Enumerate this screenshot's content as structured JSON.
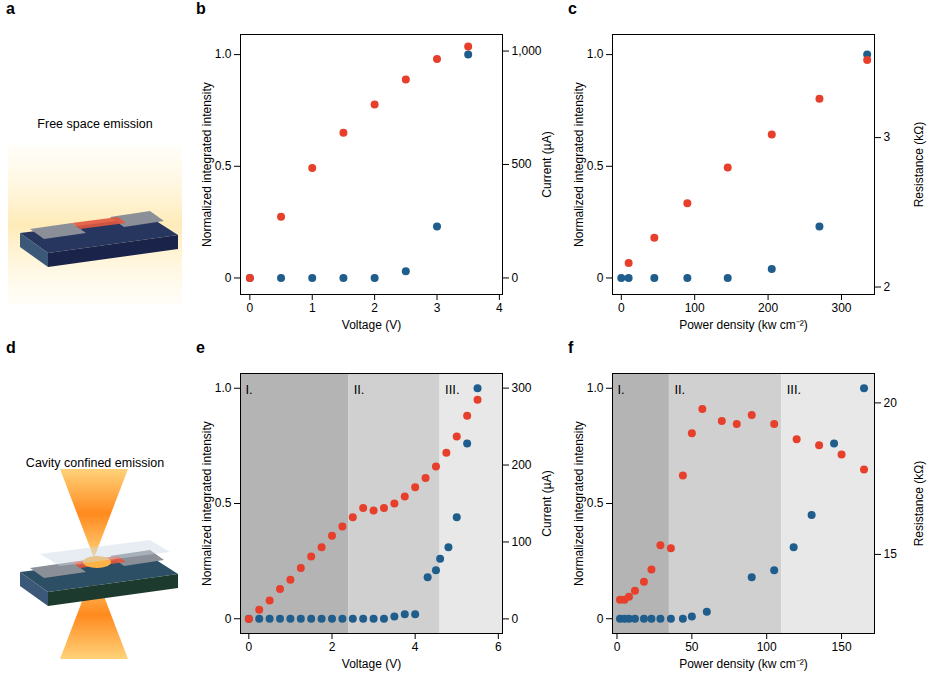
{
  "chart_data": [
    {
      "type": "illustration",
      "panel_label": "a",
      "title": "Free space emission"
    },
    {
      "type": "scatter",
      "panel_label": "b",
      "xlabel": "Voltage (V)",
      "ylabel": "Normalized integrated intensity",
      "y2label": "Current (µA)",
      "xlim": [
        -0.15,
        4.05
      ],
      "xticks": [
        0,
        1,
        2,
        3,
        4
      ],
      "ylim": [
        -0.074,
        1.09
      ],
      "yticks": [
        0,
        0.5,
        {
          "value": 1,
          "label": "1.0"
        }
      ],
      "y2lim": [
        -73,
        1073
      ],
      "y2ticks": [
        0,
        500,
        {
          "value": 1000,
          "label": "1,000"
        }
      ],
      "series": [
        {
          "color": "#1f5d8c",
          "marker": "circle",
          "x": [
            0,
            0.5,
            1,
            1.5,
            2,
            2.5,
            3,
            3.5
          ],
          "values": [
            0,
            0,
            0,
            0,
            0,
            0.03,
            0.23,
            1.0
          ]
        },
        {
          "color": "#e6402c",
          "marker": "circle",
          "axis": "y2",
          "x": [
            0,
            0.5,
            1,
            1.5,
            2,
            2.5,
            3,
            3.5
          ],
          "values": [
            0,
            270,
            485,
            640,
            765,
            875,
            965,
            1020
          ]
        }
      ]
    },
    {
      "type": "scatter",
      "panel_label": "c",
      "xlabel": "Power density (kw cm⁻²)",
      "ylabel": "Normalized integrated intensity",
      "y2label": "Resistance (kΩ)",
      "xlim": [
        -12,
        345
      ],
      "xticks": [
        0,
        100,
        200,
        300
      ],
      "ylim": [
        -0.074,
        1.09
      ],
      "yticks": [
        0,
        0.5,
        {
          "value": 1,
          "label": "1.0"
        }
      ],
      "y2lim": [
        1.95,
        3.69
      ],
      "y2ticks": [
        2,
        3
      ],
      "series": [
        {
          "color": "#1f5d8c",
          "marker": "circle",
          "x": [
            0,
            10,
            45,
            90,
            145,
            205,
            270,
            335
          ],
          "values": [
            0,
            0,
            0,
            0,
            0,
            0.04,
            0.23,
            1.0
          ]
        },
        {
          "color": "#e6402c",
          "marker": "circle",
          "axis": "y2",
          "x": [
            10,
            45,
            90,
            145,
            205,
            270,
            335
          ],
          "values": [
            2.16,
            2.33,
            2.56,
            2.8,
            3.02,
            3.26,
            3.52
          ]
        }
      ]
    },
    {
      "type": "illustration",
      "panel_label": "d",
      "title": "Cavity confined emission"
    },
    {
      "type": "scatter",
      "panel_label": "e",
      "xlabel": "Voltage (V)",
      "ylabel": "Normalized integrated intensity",
      "y2label": "Current (µA)",
      "xlim": [
        -0.2,
        6.1
      ],
      "xticks": [
        0,
        2,
        4,
        6
      ],
      "ylim": [
        -0.064,
        1.064
      ],
      "yticks": [
        0,
        0.5,
        {
          "value": 1,
          "label": "1.0"
        }
      ],
      "y2lim": [
        -19,
        319
      ],
      "y2ticks": [
        0,
        100,
        200,
        300
      ],
      "regions": [
        {
          "label": "I.",
          "from": -0.2,
          "to": 2.4
        },
        {
          "label": "II.",
          "from": 2.4,
          "to": 4.6
        },
        {
          "label": "III.",
          "from": 4.6,
          "to": 6.1
        }
      ],
      "series": [
        {
          "color": "#1f5d8c",
          "marker": "circle",
          "x": [
            0,
            0.25,
            0.5,
            0.75,
            1,
            1.25,
            1.5,
            1.75,
            2,
            2.25,
            2.5,
            2.75,
            3,
            3.25,
            3.5,
            3.75,
            4,
            4.3,
            4.5,
            4.6,
            4.8,
            5.0,
            5.25,
            5.5
          ],
          "values": [
            0,
            0,
            0,
            0,
            0,
            0,
            0,
            0,
            0,
            0,
            0,
            0,
            0,
            0,
            0.01,
            0.02,
            0.02,
            0.18,
            0.21,
            0.26,
            0.31,
            0.44,
            0.76,
            1.0
          ]
        },
        {
          "color": "#e6402c",
          "marker": "circle",
          "axis": "y2",
          "x": [
            0,
            0.25,
            0.5,
            0.75,
            1,
            1.25,
            1.5,
            1.75,
            2,
            2.25,
            2.5,
            2.75,
            3,
            3.25,
            3.5,
            3.75,
            4,
            4.25,
            4.5,
            4.75,
            5,
            5.25,
            5.5
          ],
          "values": [
            0,
            12,
            24,
            39,
            51,
            66,
            81,
            93,
            108,
            120,
            132,
            144,
            141,
            144,
            150,
            159,
            171,
            183,
            198,
            216,
            237,
            264,
            285
          ]
        }
      ]
    },
    {
      "type": "scatter",
      "panel_label": "f",
      "xlabel": "Power density (kw cm⁻²)",
      "ylabel": "Normalized integrated intensity",
      "y2label": "Resistance (kΩ)",
      "xlim": [
        -3,
        172
      ],
      "xticks": [
        0,
        50,
        100,
        150
      ],
      "ylim": [
        -0.064,
        1.064
      ],
      "yticks": [
        0,
        0.5,
        {
          "value": 1,
          "label": "1.0"
        }
      ],
      "y2lim": [
        12.39,
        20.97
      ],
      "y2ticks": [
        15,
        20
      ],
      "regions": [
        {
          "label": "I.",
          "from": -3,
          "to": 35
        },
        {
          "label": "II.",
          "from": 35,
          "to": 110
        },
        {
          "label": "III.",
          "from": 110,
          "to": 172
        }
      ],
      "series": [
        {
          "color": "#1f5d8c",
          "marker": "circle",
          "x": [
            2,
            5,
            8,
            12,
            18,
            23,
            29,
            36,
            44,
            50,
            60,
            90,
            105,
            118,
            130,
            145,
            165
          ],
          "values": [
            0,
            0,
            0,
            0,
            0,
            0,
            0,
            0,
            0,
            0.01,
            0.03,
            0.18,
            0.21,
            0.31,
            0.45,
            0.76,
            1.0
          ]
        },
        {
          "color": "#e6402c",
          "marker": "circle",
          "axis": "y2",
          "x": [
            2,
            5,
            8,
            12,
            18,
            23,
            29,
            36,
            44,
            50,
            57,
            70,
            80,
            90,
            105,
            120,
            135,
            150,
            165
          ],
          "values": [
            13.5,
            13.5,
            13.6,
            13.8,
            14.1,
            14.5,
            15.3,
            15.2,
            17.6,
            19.0,
            19.8,
            19.4,
            19.3,
            19.6,
            19.3,
            18.8,
            18.6,
            18.3,
            17.8
          ]
        }
      ]
    }
  ]
}
